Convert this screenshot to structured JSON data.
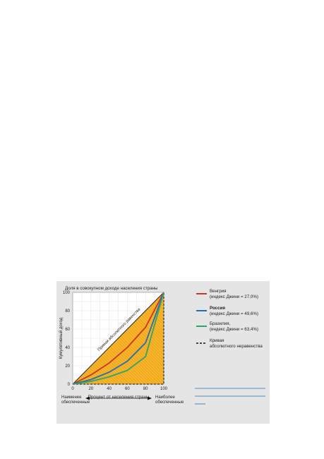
{
  "chart_data": {
    "type": "line",
    "title": "Доля в совокупном доходе населения страны",
    "ylabel": "Кумулятивный доход",
    "xlabel": "Процент от населения страны",
    "equality_label": "Прямая абсолютного равенства",
    "x_ticks": [
      "0",
      "20",
      "40",
      "60",
      "80",
      "100"
    ],
    "y_ticks": [
      "0",
      "20",
      "40",
      "60",
      "80",
      "100"
    ],
    "xlim": [
      0,
      100
    ],
    "ylim": [
      0,
      100
    ],
    "grid": true,
    "legend_position": "right",
    "series": [
      {
        "name": "Венгрия",
        "detail": "(индекс Джини = 27,0%)",
        "color": "#c8352a",
        "x": [
          0,
          20,
          40,
          60,
          80,
          100
        ],
        "y": [
          0,
          10,
          23,
          40,
          62,
          100
        ]
      },
      {
        "name": "Россия",
        "detail": "(индекс Джини = 49,6%)",
        "color": "#1f6fb2",
        "x": [
          0,
          20,
          40,
          60,
          80,
          100
        ],
        "y": [
          0,
          5,
          13,
          25,
          45,
          100
        ]
      },
      {
        "name": "Бразилия,",
        "detail": "(индекс Джини = 63,4%)",
        "color": "#2ea56b",
        "x": [
          0,
          20,
          40,
          60,
          80,
          100
        ],
        "y": [
          0,
          3,
          8,
          15,
          30,
          100
        ]
      }
    ],
    "inequality_legend": {
      "line1": "Кривая",
      "line2": "абсолютного неравенства"
    },
    "colors": {
      "fill": "#f7b62a",
      "hatch": "#e59a1a",
      "background": "#e5e5e5",
      "grid": "#ffffff"
    },
    "annotations": {
      "left_line1": "Наименее",
      "left_line2": "обеспеченные",
      "right_line1": "Наиболее",
      "right_line2": "обеспеченные"
    }
  }
}
